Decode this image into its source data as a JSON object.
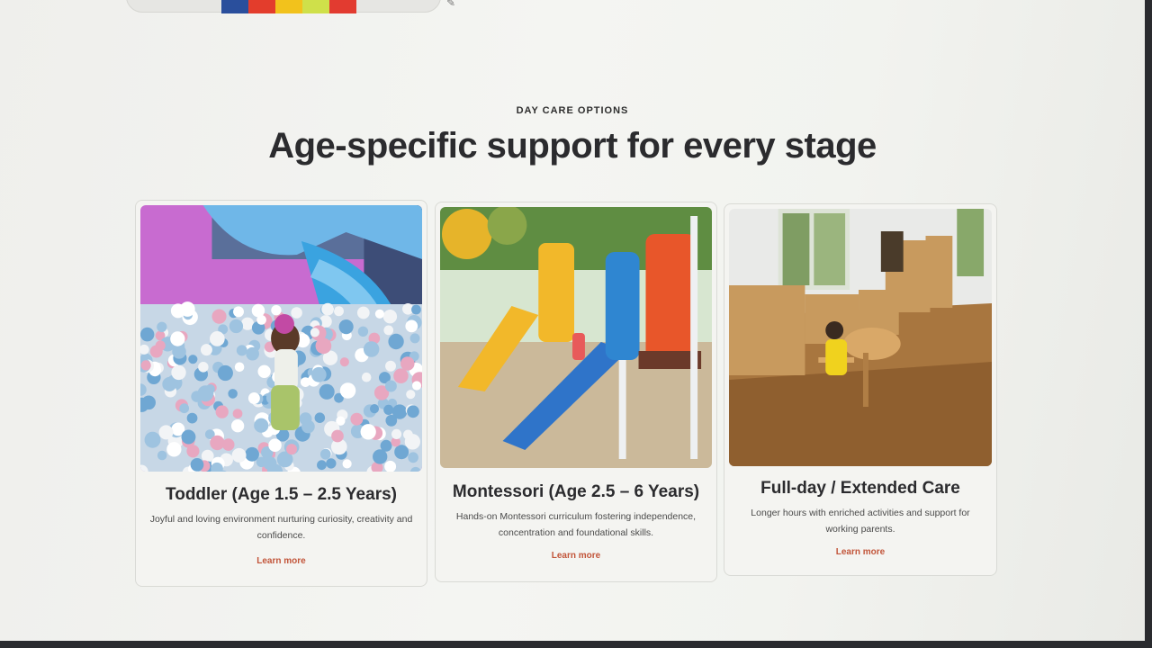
{
  "section": {
    "eyebrow": "DAY CARE OPTIONS",
    "headline": "Age-specific support for every stage"
  },
  "cards": [
    {
      "title": "Toddler (Age 1.5 – 2.5 Years)",
      "description": "Joyful and loving environment nurturing curiosity, creativity and confidence.",
      "link": "Learn more",
      "image": "toddler-ball-pit-photo"
    },
    {
      "title": "Montessori (Age 2.5 – 6 Years)",
      "description": "Hands-on Montessori curriculum fostering independence, concentration and foundational skills.",
      "link": "Learn more",
      "image": "playground-slide-photo"
    },
    {
      "title": "Full-day / Extended Care",
      "description": "Longer hours with enriched activities and support for working parents.",
      "link": "Learn more",
      "image": "classroom-wooden-floor-photo"
    }
  ],
  "colors": {
    "accent": "#c2553a",
    "heading": "#2b2b2e",
    "card_background": "#f4f4f1"
  }
}
